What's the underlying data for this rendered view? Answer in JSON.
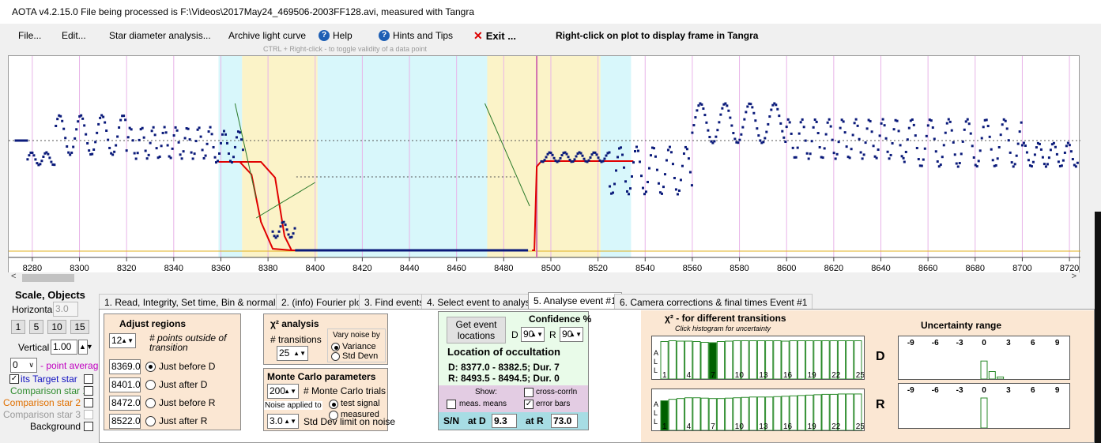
{
  "window": {
    "title": "AOTA v4.2.15.0    File being processed is F:\\Videos\\2017May24_469506-2003FF128.avi, measured with Tangra"
  },
  "menu": {
    "file": "File...",
    "edit": "Edit...",
    "star_diameter": "Star diameter analysis...",
    "archive": "Archive light curve",
    "help": "Help",
    "hints": "Hints and Tips",
    "exit": "Exit ...",
    "plot_hint": "Right-click on plot to display frame in Tangra",
    "ctrl_hint": "CTRL + Right-click   -  to toggle validity of a data point"
  },
  "plot": {
    "x_ticks": [
      8280,
      8300,
      8320,
      8340,
      8360,
      8380,
      8400,
      8420,
      8440,
      8460,
      8480,
      8500,
      8520,
      8540,
      8560,
      8580,
      8600,
      8620,
      8640,
      8660,
      8680,
      8700,
      8720
    ],
    "x_range": [
      8273,
      8724
    ],
    "colors": {
      "data_points": "#0a1a7a",
      "model_curve": "#e00000",
      "cyan_region": "#d8f7fb",
      "yellow_region": "#fbf3c8",
      "baseline": "#e0b020",
      "grid": "#e8b4e8"
    },
    "cyan_regions": [
      [
        8359,
        8369
      ],
      [
        8400,
        8473
      ],
      [
        8521,
        8534
      ]
    ],
    "yellow_regions": [
      [
        8369,
        8401
      ],
      [
        8473,
        8521
      ]
    ]
  },
  "left_panel": {
    "scale_title": "Scale, Objects",
    "horizontal_label": "Horizontal",
    "horizontal_value": "3.0",
    "scale_buttons": [
      "1",
      "5",
      "10",
      "15"
    ],
    "vertical_label": "Vertical",
    "vertical_value": "1.00",
    "point_avg_value": "0",
    "point_avg_label": "- point average",
    "target_label": "its  Target star",
    "comp1_label": "Comparison star 1",
    "comp2_label": "Comparison star 2",
    "comp3_label": "Comparison star 3",
    "background_label": "Background",
    "colors": {
      "target": "#1010c0",
      "comp1": "#2e8b2e",
      "comp2": "#e07000",
      "comp3": "#999999",
      "point_avg": "#c000c0"
    }
  },
  "tabs": [
    "1.  Read, Integrity, Set time, Bin & normalise",
    "2.  (info)  Fourier plot",
    "3. Find events",
    "4. Select event to analyse",
    "5. Analyse event #1",
    "6. Camera corrections & final times Event #1"
  ],
  "adjust_regions": {
    "title": "Adjust regions",
    "points_value": "12",
    "points_label": "# points outside of transition",
    "rows": [
      {
        "value": "8369.0",
        "label": "Just before D"
      },
      {
        "value": "8401.0",
        "label": "Just after D"
      },
      {
        "value": "8472.0",
        "label": "Just before R"
      },
      {
        "value": "8522.0",
        "label": "Just after R"
      }
    ]
  },
  "chi2": {
    "title": "χ² analysis",
    "transitions_label": "# transitions",
    "transitions_value": "25",
    "vary_label": "Vary noise by",
    "variance": "Variance",
    "stddevn": "Std Devn"
  },
  "monte_carlo": {
    "title": "Monte Carlo parameters",
    "trials_value": "200",
    "trials_label": "# Monte Carlo trials",
    "noise_label": "Noise applied to",
    "test_signal": "test signal",
    "measured": "measured",
    "std_value": "3.0",
    "std_label": "Std Dev limit on noise"
  },
  "location": {
    "get_button": "Get event locations",
    "confidence_title": "Confidence %",
    "d_label": "D",
    "d_value": "90",
    "r_label": "R",
    "r_value": "90",
    "title": "Location of occultation",
    "d_line": "D: 8377.0 - 8382.5; Dur. 7",
    "r_line": "R: 8493.5 - 8494.5; Dur. 0",
    "show_label": "Show:",
    "cross_corr": "cross-corrln",
    "meas_means": "meas. means",
    "error_bars": "error bars",
    "sn_label": "S/N",
    "at_d_label": "at D",
    "at_d_value": "9.3",
    "at_r_label": "at R",
    "at_r_value": "73.0"
  },
  "chi2_hist": {
    "title": "χ² - for different transitions",
    "subtitle": "Click histogram for uncertainty",
    "ticks": [
      "1",
      "4",
      "7",
      "10",
      "13",
      "16",
      "19",
      "22",
      "25"
    ],
    "d_label": "D",
    "r_label": "R",
    "side_letters": [
      "A",
      "L",
      "L"
    ],
    "d_heights": [
      0.95,
      0.97,
      0.96,
      0.96,
      0.95,
      0.93,
      0.92,
      0.95,
      0.96,
      0.97,
      0.97,
      0.97,
      0.97,
      0.97,
      0.97,
      0.96,
      0.97,
      0.97,
      0.97,
      0.97,
      0.97,
      0.97,
      0.97,
      0.97,
      0.97
    ],
    "d_selected": 7,
    "r_heights": [
      0.78,
      0.82,
      0.84,
      0.86,
      0.86,
      0.85,
      0.84,
      0.84,
      0.85,
      0.86,
      0.87,
      0.88,
      0.88,
      0.88,
      0.89,
      0.9,
      0.91,
      0.92,
      0.93,
      0.94,
      0.95,
      0.95,
      0.96,
      0.96,
      0.96
    ],
    "r_selected": 1
  },
  "uncertainty": {
    "title": "Uncertainty range",
    "ticks": [
      "-9",
      "-6",
      "-3",
      "0",
      "3",
      "6",
      "9"
    ],
    "d_bars": [
      {
        "offset": 0,
        "height": 0.6
      },
      {
        "offset": 1,
        "height": 0.25
      },
      {
        "offset": 2,
        "height": 0.07
      }
    ],
    "r_bars": [
      {
        "offset": 0,
        "height": 0.95
      }
    ]
  }
}
